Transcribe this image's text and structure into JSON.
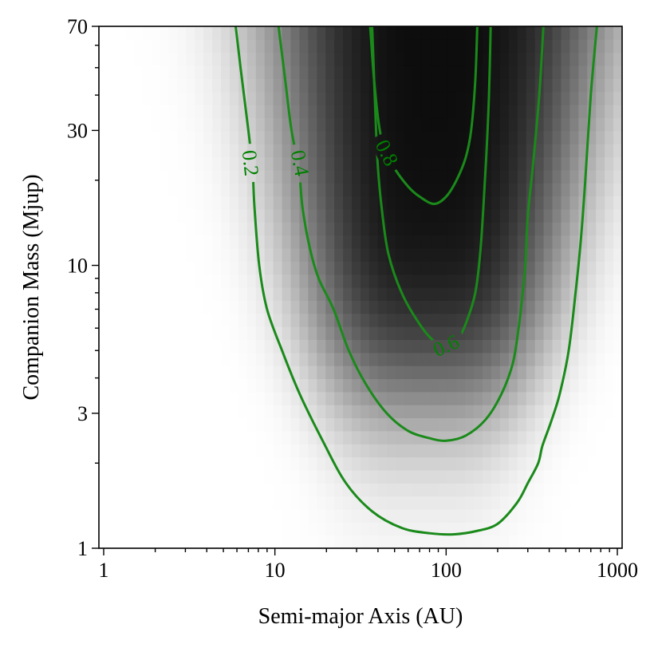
{
  "chart_data": {
    "type": "heatmap",
    "title": "",
    "xlabel": "Semi-major Axis (AU)",
    "ylabel": "Companion Mass (Mjup)",
    "x_scale": "log",
    "y_scale": "log",
    "xlim": [
      1,
      1000
    ],
    "ylim": [
      1,
      70
    ],
    "x_ticks": [
      {
        "value": 1,
        "label": "1"
      },
      {
        "value": 10,
        "label": "10"
      },
      {
        "value": 100,
        "label": "100"
      },
      {
        "value": 1000,
        "label": "1000"
      }
    ],
    "y_ticks": [
      {
        "value": 1,
        "label": "1"
      },
      {
        "value": 3,
        "label": "3"
      },
      {
        "value": 10,
        "label": "10"
      },
      {
        "value": 30,
        "label": "30"
      },
      {
        "value": 70,
        "label": "70"
      }
    ],
    "colormap": "gray_r",
    "contour_color": "#008000",
    "contours": [
      {
        "level": 0.2,
        "label": "0.2",
        "label_at": [
          7.2,
          23
        ],
        "points": [
          [
            5.9,
            70
          ],
          [
            6.3,
            50
          ],
          [
            7.0,
            30
          ],
          [
            7.4,
            22
          ],
          [
            7.6,
            16
          ],
          [
            8.1,
            10
          ],
          [
            9.0,
            7.0
          ],
          [
            11,
            5.0
          ],
          [
            14,
            3.5
          ],
          [
            19,
            2.4
          ],
          [
            26,
            1.7
          ],
          [
            37,
            1.35
          ],
          [
            55,
            1.18
          ],
          [
            80,
            1.13
          ],
          [
            110,
            1.12
          ],
          [
            150,
            1.15
          ],
          [
            200,
            1.22
          ],
          [
            260,
            1.45
          ],
          [
            300,
            1.7
          ],
          [
            345,
            2.0
          ],
          [
            365,
            2.3
          ],
          [
            410,
            2.8
          ],
          [
            460,
            3.5
          ],
          [
            520,
            5.0
          ],
          [
            570,
            8.0
          ],
          [
            610,
            12
          ],
          [
            650,
            20
          ],
          [
            700,
            40
          ],
          [
            760,
            70
          ]
        ]
      },
      {
        "level": 0.4,
        "label": "0.4",
        "label_at": [
          14,
          23
        ],
        "points": [
          [
            10.5,
            70
          ],
          [
            11.5,
            45
          ],
          [
            12.5,
            30
          ],
          [
            13.8,
            22
          ],
          [
            14.5,
            16
          ],
          [
            16,
            11.5
          ],
          [
            18,
            9
          ],
          [
            22,
            7
          ],
          [
            27,
            5
          ],
          [
            34,
            3.8
          ],
          [
            45,
            3.0
          ],
          [
            60,
            2.6
          ],
          [
            80,
            2.45
          ],
          [
            100,
            2.4
          ],
          [
            130,
            2.5
          ],
          [
            170,
            2.85
          ],
          [
            210,
            3.5
          ],
          [
            245,
            4.5
          ],
          [
            265,
            6
          ],
          [
            280,
            8
          ],
          [
            290,
            10
          ],
          [
            300,
            15
          ],
          [
            320,
            22
          ],
          [
            350,
            40
          ],
          [
            370,
            70
          ]
        ]
      },
      {
        "level": 0.6,
        "label": "0.6",
        "label_at": [
          100,
          5.2
        ],
        "points": [
          [
            37,
            70
          ],
          [
            38,
            45
          ],
          [
            39,
            30
          ],
          [
            40,
            22
          ],
          [
            42,
            16
          ],
          [
            46,
            11
          ],
          [
            55,
            8
          ],
          [
            70,
            6.2
          ],
          [
            85,
            5.4
          ],
          [
            100,
            5.2
          ],
          [
            115,
            5.4
          ],
          [
            130,
            6.2
          ],
          [
            148,
            8
          ],
          [
            158,
            11
          ],
          [
            165,
            16
          ],
          [
            172,
            25
          ],
          [
            178,
            40
          ],
          [
            182,
            70
          ]
        ]
      },
      {
        "level": 0.8,
        "label": "0.8",
        "label_at": [
          45,
          25
        ],
        "points": [
          [
            36,
            70
          ],
          [
            38,
            45
          ],
          [
            41,
            30
          ],
          [
            45,
            25
          ],
          [
            50,
            22
          ],
          [
            60,
            19
          ],
          [
            70,
            17.5
          ],
          [
            85,
            16.5
          ],
          [
            100,
            17.5
          ],
          [
            115,
            20
          ],
          [
            130,
            24
          ],
          [
            140,
            30
          ],
          [
            148,
            45
          ],
          [
            152,
            70
          ]
        ]
      }
    ]
  }
}
